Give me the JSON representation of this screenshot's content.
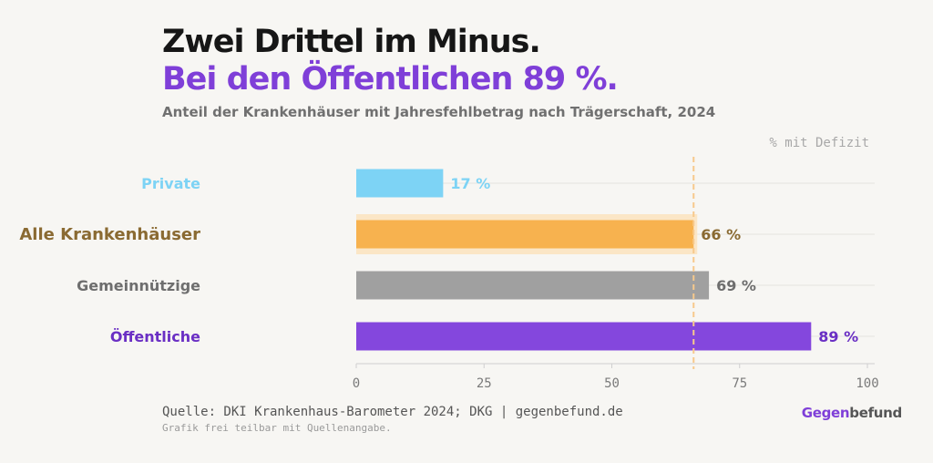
{
  "header": {
    "title_line1": "Zwei Drittel im Minus.",
    "title_line2": "Bei den Öffentlichen 89 %.",
    "subtitle": "Anteil der Krankenhäuser mit Jahresfehlbetrag nach Trägerschaft, 2024"
  },
  "footer": {
    "source": "Quelle: DKI Krankenhaus-Barometer 2024; DKG | gegenbefund.de",
    "note": "Grafik frei teilbar mit Quellenangabe.",
    "brand_part1": "Gegen",
    "brand_part2": "befund"
  },
  "colors": {
    "accent": "#7f3fd8",
    "private": "#7dd3f5",
    "all": "#f7b24f",
    "nonprofit": "#a0a0a0",
    "public": "#8447dd",
    "reference_line": "#f7c98c"
  },
  "chart_data": {
    "type": "bar",
    "orientation": "horizontal",
    "unit_label": "% mit Defizit",
    "categories": [
      "Private",
      "Alle Krankenhäuser",
      "Gemeinnützige",
      "Öffentliche"
    ],
    "values": [
      17,
      66,
      69,
      89
    ],
    "value_labels": [
      "17 %",
      "66 %",
      "69 %",
      "89 %"
    ],
    "category_colors": [
      "#7dd3f5",
      "#f7b24f",
      "#a0a0a0",
      "#8447dd"
    ],
    "label_colors": [
      "#7dd3f5",
      "#8a6a32",
      "#6e6e6e",
      "#6a2fc4"
    ],
    "highlighted_category": "Alle Krankenhäuser",
    "reference_line": 66,
    "xlim": [
      0,
      100
    ],
    "xticks": [
      0,
      25,
      50,
      75,
      100
    ],
    "grid": true
  }
}
